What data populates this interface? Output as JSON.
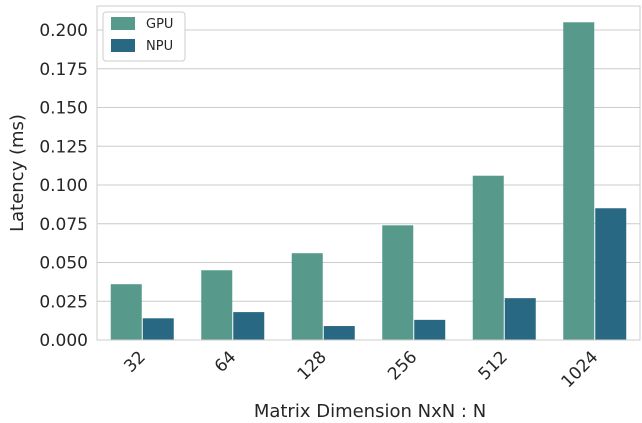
{
  "chart_data": {
    "type": "bar",
    "title": "",
    "xlabel": "Matrix Dimension NxN : N",
    "ylabel": "Latency (ms)",
    "categories": [
      "32",
      "64",
      "128",
      "256",
      "512",
      "1024"
    ],
    "series": [
      {
        "name": "GPU",
        "color": "#579a8b",
        "values": [
          0.036,
          0.045,
          0.056,
          0.074,
          0.106,
          0.205
        ]
      },
      {
        "name": "NPU",
        "color": "#286883",
        "values": [
          0.014,
          0.018,
          0.009,
          0.013,
          0.027,
          0.085
        ]
      }
    ],
    "ylim": [
      0,
      0.2155
    ],
    "yticks": [
      "0.000",
      "0.025",
      "0.050",
      "0.075",
      "0.100",
      "0.125",
      "0.150",
      "0.175",
      "0.200"
    ],
    "grid": "horizontal",
    "legend_position": "top-left"
  }
}
